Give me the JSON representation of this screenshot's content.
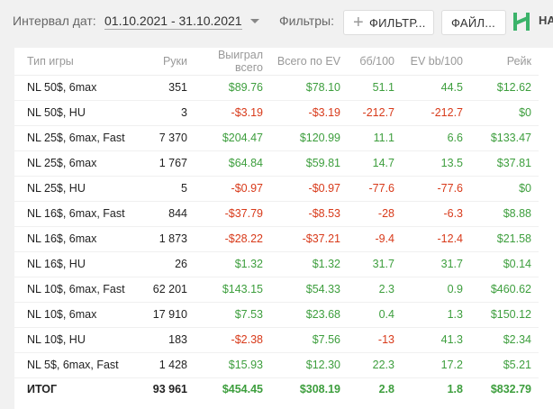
{
  "toolbar": {
    "date_label": "Интервал дат:",
    "date_range": "01.10.2021 - 31.10.2021",
    "filters_label": "Фильтры:",
    "filters_button": "ФИЛЬТР...",
    "file_button": "ФАЙЛ...",
    "logo_text": "НА"
  },
  "colors": {
    "positive": "#3d9e3d",
    "negative": "#d83a1a",
    "logo": "#3bb36a"
  },
  "table": {
    "headers": [
      "Тип игры",
      "Руки",
      "Выиграл всего",
      "Всего по EV",
      "бб/100",
      "EV bb/100",
      "Рейк"
    ],
    "rows": [
      [
        "NL 50$, 6max",
        "351",
        "$89.76",
        "$78.10",
        "51.1",
        "44.5",
        "$12.62"
      ],
      [
        "NL 50$, HU",
        "3",
        "-$3.19",
        "-$3.19",
        "-212.7",
        "-212.7",
        "$0"
      ],
      [
        "NL 25$, 6max, Fast",
        "7 370",
        "$204.47",
        "$120.99",
        "11.1",
        "6.6",
        "$133.47"
      ],
      [
        "NL 25$, 6max",
        "1 767",
        "$64.84",
        "$59.81",
        "14.7",
        "13.5",
        "$37.81"
      ],
      [
        "NL 25$, HU",
        "5",
        "-$0.97",
        "-$0.97",
        "-77.6",
        "-77.6",
        "$0"
      ],
      [
        "NL 16$, 6max, Fast",
        "844",
        "-$37.79",
        "-$8.53",
        "-28",
        "-6.3",
        "$8.88"
      ],
      [
        "NL 16$, 6max",
        "1 873",
        "-$28.22",
        "-$37.21",
        "-9.4",
        "-12.4",
        "$21.58"
      ],
      [
        "NL 16$, HU",
        "26",
        "$1.32",
        "$1.32",
        "31.7",
        "31.7",
        "$0.14"
      ],
      [
        "NL 10$, 6max, Fast",
        "62 201",
        "$143.15",
        "$54.33",
        "2.3",
        "0.9",
        "$460.62"
      ],
      [
        "NL 10$, 6max",
        "17 910",
        "$7.53",
        "$23.68",
        "0.4",
        "1.3",
        "$150.12"
      ],
      [
        "NL 10$, HU",
        "183",
        "-$2.38",
        "$7.56",
        "-13",
        "41.3",
        "$2.34"
      ],
      [
        "NL 5$, 6max, Fast",
        "1 428",
        "$15.93",
        "$12.30",
        "22.3",
        "17.2",
        "$5.21"
      ]
    ],
    "total": [
      "ИТОГ",
      "93 961",
      "$454.45",
      "$308.19",
      "2.8",
      "1.8",
      "$832.79"
    ]
  }
}
